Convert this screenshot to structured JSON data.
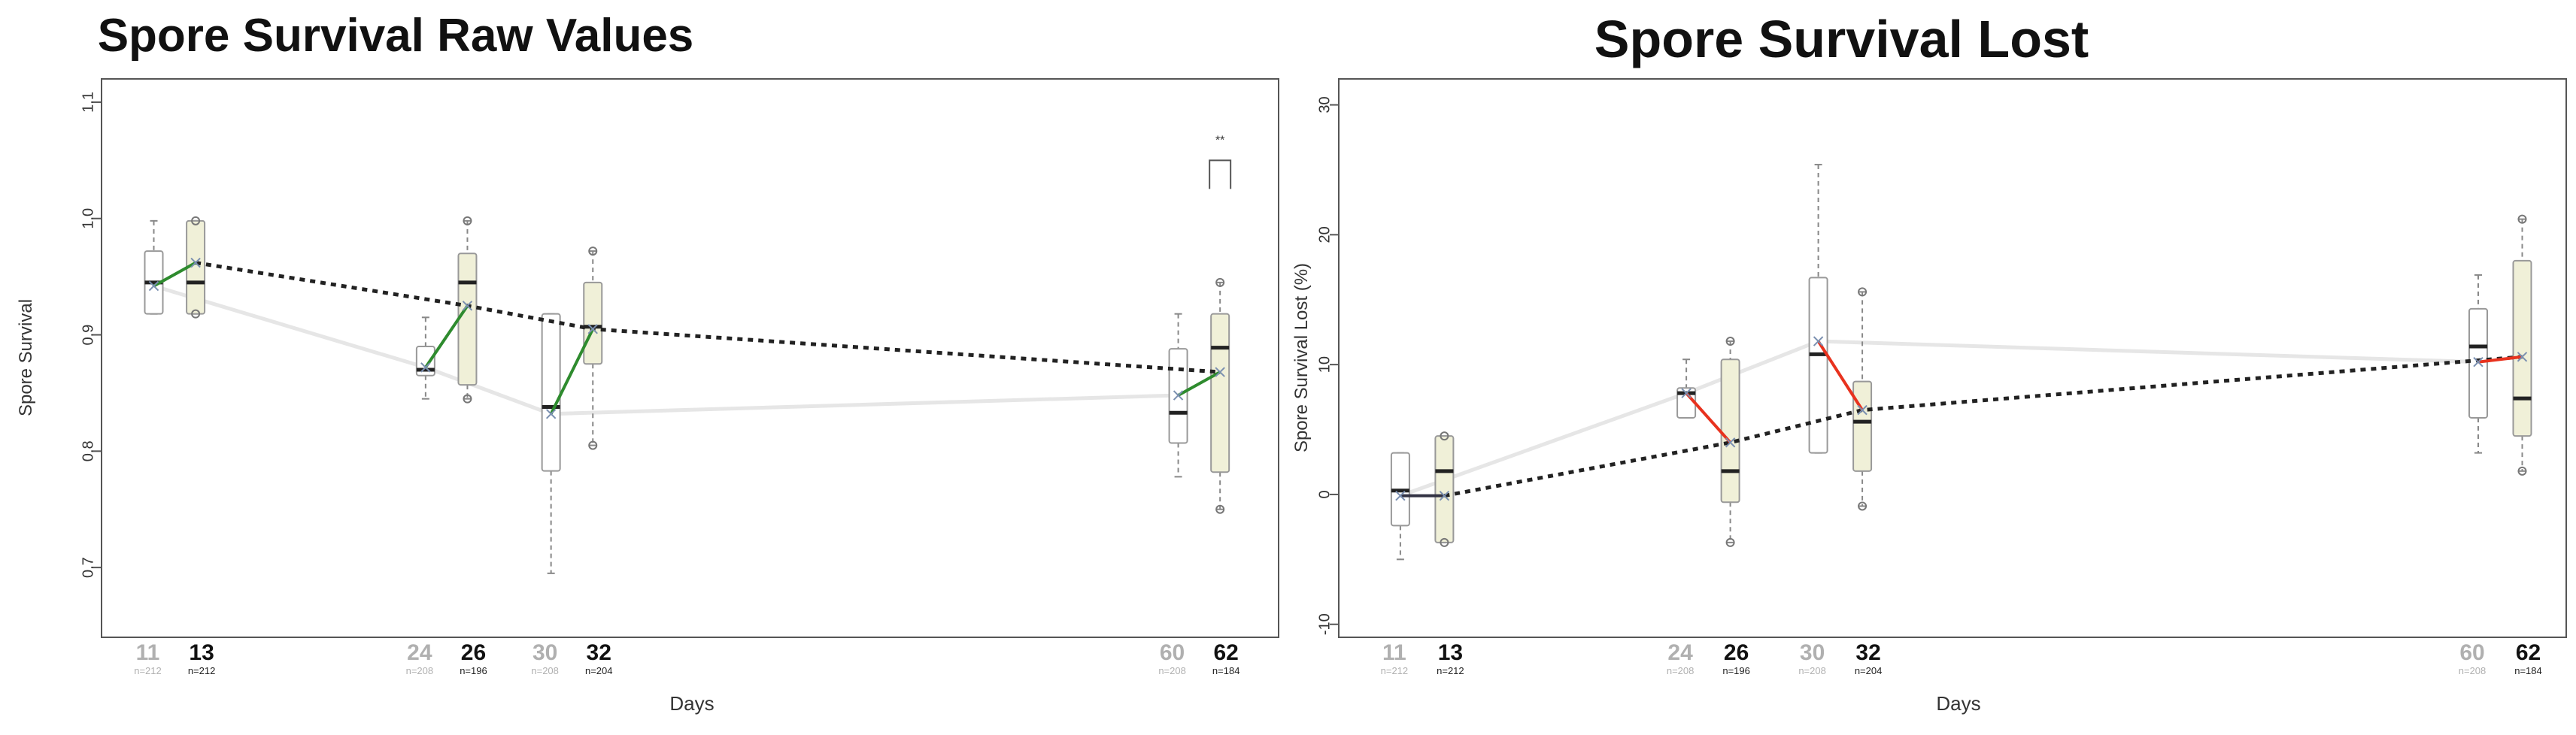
{
  "chart_data": [
    {
      "type": "box",
      "title": "Spore Survival Raw Values",
      "xlabel": "Days",
      "ylabel": "Spore Survival",
      "ylim": [
        0.64,
        1.12
      ],
      "yticks": [
        "0.7",
        "0.8",
        "0.9",
        "1.0",
        "1.1"
      ],
      "ytick_values": [
        0.7,
        0.8,
        0.9,
        1.0,
        1.1
      ],
      "groups": [
        {
          "day": 11,
          "label": "11",
          "n": "n=212",
          "style": "control",
          "box": {
            "min": 0.918,
            "q1": 0.918,
            "median": 0.945,
            "q3": 0.972,
            "max": 0.998
          },
          "mean": 0.942
        },
        {
          "day": 13,
          "label": "13",
          "n": "n=212",
          "style": "treated",
          "box": {
            "min": 0.918,
            "q1": 0.918,
            "median": 0.945,
            "q3": 0.998,
            "max": 0.998
          },
          "mean": 0.962
        },
        {
          "day": 24,
          "label": "24",
          "n": "n=208",
          "style": "control",
          "box": {
            "min": 0.845,
            "q1": 0.865,
            "median": 0.87,
            "q3": 0.89,
            "max": 0.915
          },
          "mean": 0.872
        },
        {
          "day": 26,
          "label": "26",
          "n": "n=196",
          "style": "treated",
          "box": {
            "min": 0.845,
            "q1": 0.857,
            "median": 0.945,
            "q3": 0.97,
            "max": 0.998
          },
          "mean": 0.925
        },
        {
          "day": 30,
          "label": "30",
          "n": "n=208",
          "style": "control",
          "box": {
            "min": 0.695,
            "q1": 0.783,
            "median": 0.838,
            "q3": 0.918,
            "max": 0.918
          },
          "mean": 0.832
        },
        {
          "day": 32,
          "label": "32",
          "n": "n=204",
          "style": "treated",
          "box": {
            "min": 0.805,
            "q1": 0.875,
            "median": 0.907,
            "q3": 0.945,
            "max": 0.972
          },
          "mean": 0.905
        },
        {
          "day": 60,
          "label": "60",
          "n": "n=208",
          "style": "control",
          "box": {
            "min": 0.778,
            "q1": 0.807,
            "median": 0.833,
            "q3": 0.888,
            "max": 0.918
          },
          "mean": 0.848
        },
        {
          "day": 62,
          "label": "62",
          "n": "n=184",
          "style": "treated",
          "box": {
            "min": 0.75,
            "q1": 0.782,
            "median": 0.889,
            "q3": 0.918,
            "max": 0.945
          },
          "mean": 0.868
        }
      ],
      "significance": {
        "label": "**",
        "day": 62,
        "value": 1.05
      }
    },
    {
      "type": "box",
      "title": "Spore Survival Lost",
      "xlabel": "Days",
      "ylabel": "Spore Survival Lost (%)",
      "ylim": [
        -11,
        32
      ],
      "yticks": [
        "-10",
        "0",
        "10",
        "20",
        "30"
      ],
      "ytick_values": [
        -10,
        0,
        10,
        20,
        30
      ],
      "groups": [
        {
          "day": 11,
          "label": "11",
          "n": "n=212",
          "style": "control",
          "box": {
            "min": -5,
            "q1": -2.4,
            "median": 0.3,
            "q3": 3.2,
            "max": 3.2
          },
          "mean": -0.1
        },
        {
          "day": 13,
          "label": "13",
          "n": "n=212",
          "style": "treated",
          "box": {
            "min": -3.7,
            "q1": -3.7,
            "median": 1.8,
            "q3": 4.5,
            "max": 4.5
          },
          "mean": -0.1
        },
        {
          "day": 24,
          "label": "24",
          "n": "n=208",
          "style": "control",
          "box": {
            "min": 5.9,
            "q1": 5.9,
            "median": 7.8,
            "q3": 8.2,
            "max": 10.4
          },
          "mean": 7.8
        },
        {
          "day": 26,
          "label": "26",
          "n": "n=196",
          "style": "treated",
          "box": {
            "min": -3.7,
            "q1": -0.6,
            "median": 1.8,
            "q3": 10.4,
            "max": 11.8
          },
          "mean": 4.0
        },
        {
          "day": 30,
          "label": "30",
          "n": "n=208",
          "style": "control",
          "box": {
            "min": 3.2,
            "q1": 3.2,
            "median": 10.8,
            "q3": 16.7,
            "max": 25.4
          },
          "mean": 11.8
        },
        {
          "day": 32,
          "label": "32",
          "n": "n=204",
          "style": "treated",
          "box": {
            "min": -0.9,
            "q1": 1.8,
            "median": 5.6,
            "q3": 8.7,
            "max": 15.6
          },
          "mean": 6.5
        },
        {
          "day": 60,
          "label": "60",
          "n": "n=208",
          "style": "control",
          "box": {
            "min": 3.2,
            "q1": 5.9,
            "median": 11.4,
            "q3": 14.3,
            "max": 16.9
          },
          "mean": 10.2
        },
        {
          "day": 62,
          "label": "62",
          "n": "n=184",
          "style": "treated",
          "box": {
            "min": 1.8,
            "q1": 4.5,
            "median": 7.4,
            "q3": 18.0,
            "max": 21.2
          },
          "mean": 10.6
        }
      ]
    }
  ],
  "colors": {
    "treated_fill": "#f0f0d8",
    "box_stroke": "#999999",
    "control_label": "#b0b0b0",
    "control_line": "#e6e6e6",
    "treated_trend": "#222222",
    "pair_up": "#2e8b2e",
    "pair_down": "#e8321e"
  }
}
